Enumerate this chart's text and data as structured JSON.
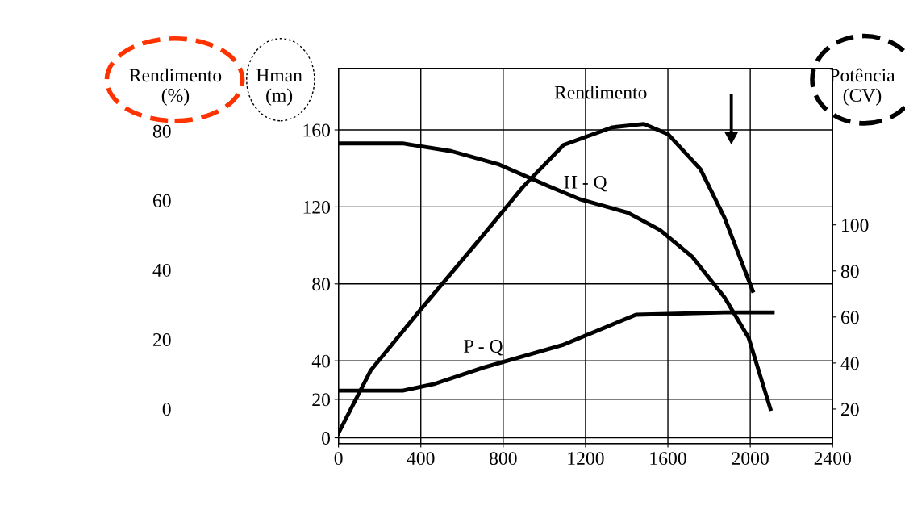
{
  "chart_data": {
    "type": "line",
    "xlim": [
      0,
      2400
    ],
    "xticks": [
      0,
      400,
      800,
      1200,
      1600,
      2000,
      2400
    ],
    "ylabel": "Hman\n(m)",
    "ylim": [
      -3,
      192
    ],
    "yticks": [
      0,
      20,
      40,
      80,
      120,
      160
    ],
    "y2label": "Potência\n(CV)",
    "y2lim": [
      5,
      168
    ],
    "y2ticks": [
      20,
      40,
      60,
      80,
      100
    ],
    "y3label": "Rendimento\n(%)",
    "y3lim": [
      -10,
      98
    ],
    "y3ticks": [
      0,
      20,
      40,
      60,
      80
    ],
    "grid": true,
    "legend": false,
    "marker": "none",
    "line_style": "solid",
    "series": [
      {
        "name": "H - Q",
        "color": "#000000",
        "x": [
          0,
          312,
          547,
          781,
          1016,
          1172,
          1406,
          1562,
          1719,
          1875,
          1992,
          2098
        ],
        "values": [
          153,
          153,
          149,
          142,
          131,
          124,
          117,
          108,
          94,
          73,
          52,
          15
        ]
      },
      {
        "name": "Rendimento",
        "color": "#000000",
        "axis": "y3",
        "x": [
          0,
          156,
          391,
          703,
          898,
          1094,
          1328,
          1484,
          1602,
          1758,
          1875,
          2012
        ],
        "values": [
          -7,
          11,
          28,
          50,
          64,
          76,
          81,
          82,
          79,
          69,
          55,
          34
        ]
      },
      {
        "name": "P - Q",
        "color": "#000000",
        "axis": "y2",
        "x": [
          0,
          312,
          469,
          703,
          1094,
          1445,
          1875,
          2109
        ],
        "values": [
          28,
          28,
          31,
          38,
          48,
          61,
          62,
          62
        ]
      }
    ]
  }
}
